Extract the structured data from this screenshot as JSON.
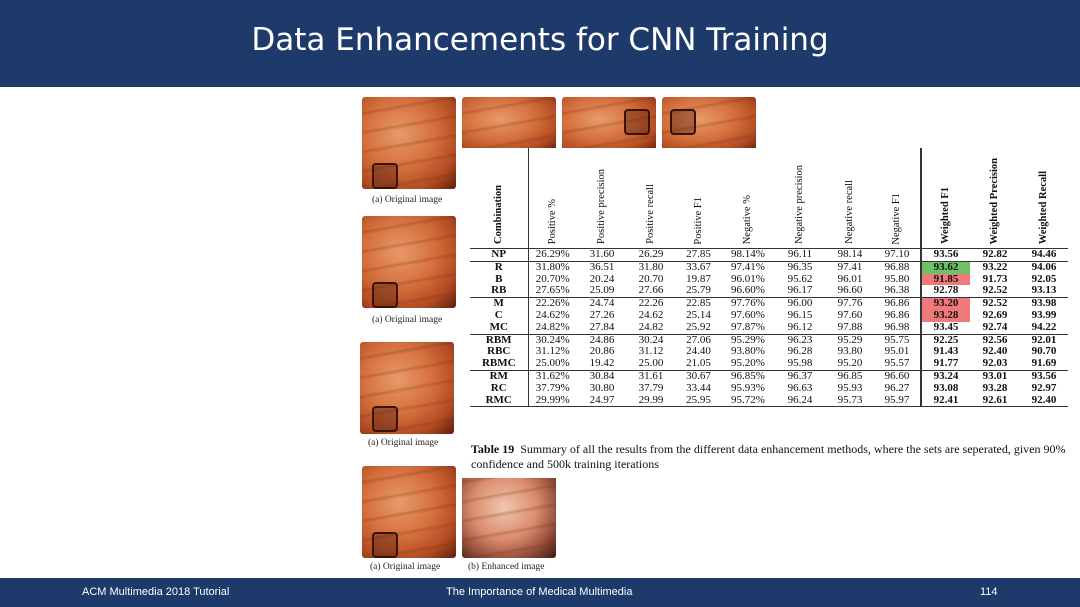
{
  "slide": {
    "title": "Data Enhancements for CNN Training",
    "footer_left": "ACM Multimedia 2018 Tutorial",
    "footer_center": "The Importance of Medical Multimedia",
    "page_number": "114"
  },
  "figures": {
    "caption_original": "(a) Original image",
    "caption_enhanced": "(b) Enhanced image"
  },
  "table": {
    "columns": [
      "Combination",
      "Positive %",
      "Positive precision",
      "Positive recall",
      "Positive F1",
      "Negative %",
      "Negative precision",
      "Negative recall",
      "Negative F1",
      "Weighted F1",
      "Weighted Precision",
      "Weighted Recall"
    ],
    "rows": [
      [
        "NP",
        "26.29%",
        "31.60",
        "26.29",
        "27.85",
        "98.14%",
        "96.11",
        "98.14",
        "97.10",
        "93.56",
        "92.82",
        "94.46"
      ],
      [
        "R",
        "31.80%",
        "36.51",
        "31.80",
        "33.67",
        "97.41%",
        "96.35",
        "97.41",
        "96.88",
        "93.62",
        "93.22",
        "94.06"
      ],
      [
        "B",
        "20.70%",
        "20.24",
        "20.70",
        "19.87",
        "96.01%",
        "95.62",
        "96.01",
        "95.80",
        "91.85",
        "91.73",
        "92.05"
      ],
      [
        "RB",
        "27.65%",
        "25.09",
        "27.66",
        "25.79",
        "96.60%",
        "96.17",
        "96.60",
        "96.38",
        "92.78",
        "92.52",
        "93.13"
      ],
      [
        "M",
        "22.26%",
        "24.74",
        "22.26",
        "22.85",
        "97.76%",
        "96.00",
        "97.76",
        "96.86",
        "93.20",
        "92.52",
        "93.98"
      ],
      [
        "C",
        "24.62%",
        "27.26",
        "24.62",
        "25.14",
        "97.60%",
        "96.15",
        "97.60",
        "96.86",
        "93.28",
        "92.69",
        "93.99"
      ],
      [
        "MC",
        "24.82%",
        "27.84",
        "24.82",
        "25.92",
        "97.87%",
        "96.12",
        "97.88",
        "96.98",
        "93.45",
        "92.74",
        "94.22"
      ],
      [
        "RBM",
        "30.24%",
        "24.86",
        "30.24",
        "27.06",
        "95.29%",
        "96.23",
        "95.29",
        "95.75",
        "92.25",
        "92.56",
        "92.01"
      ],
      [
        "RBC",
        "31.12%",
        "20.86",
        "31.12",
        "24.40",
        "93.80%",
        "96.28",
        "93.80",
        "95.01",
        "91.43",
        "92.40",
        "90.70"
      ],
      [
        "RBMC",
        "25.00%",
        "19.42",
        "25.00",
        "21.05",
        "95.20%",
        "95.98",
        "95.20",
        "95.57",
        "91.77",
        "92.03",
        "91.69"
      ],
      [
        "RM",
        "31.62%",
        "30.84",
        "31.61",
        "30.67",
        "96.85%",
        "96.37",
        "96.85",
        "96.60",
        "93.24",
        "93.01",
        "93.56"
      ],
      [
        "RC",
        "37.79%",
        "30.80",
        "37.79",
        "33.44",
        "95.93%",
        "96.63",
        "95.93",
        "96.27",
        "93.08",
        "93.28",
        "92.97"
      ],
      [
        "RMC",
        "29.99%",
        "24.97",
        "29.99",
        "25.95",
        "95.72%",
        "96.24",
        "95.73",
        "95.97",
        "92.41",
        "92.61",
        "92.40"
      ]
    ],
    "highlights": {
      "green": "#6cc16a",
      "red": "#f07a7a"
    },
    "caption_label": "Table 19",
    "caption_text": "Summary of all the results from the different data enhancement methods, where the sets are seperated, given 90% confidence and 500k training iterations"
  }
}
